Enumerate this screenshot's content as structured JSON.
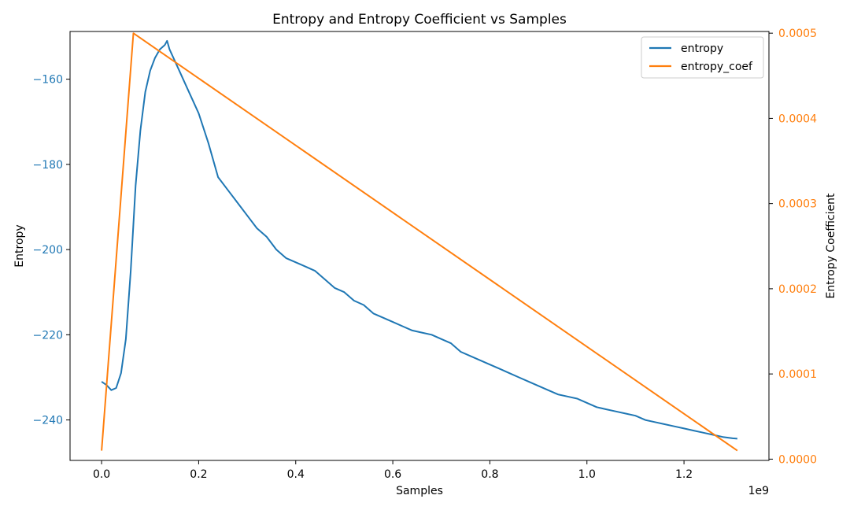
{
  "chart_data": {
    "type": "line",
    "title": "Entropy and Entropy Coefficient vs Samples",
    "xlabel": "Samples",
    "x_offset_label": "1e9",
    "ylabel_left": "Entropy",
    "ylabel_right": "Entropy Coefficient",
    "xlim": [
      -0.065,
      1.375
    ],
    "ylim_left": [
      -249.5,
      -148.8
    ],
    "ylim_right": [
      -1.5e-06,
      0.000502
    ],
    "x_ticks": [
      0.0,
      0.2,
      0.4,
      0.6,
      0.8,
      1.0,
      1.2
    ],
    "x_tick_labels": [
      "0.0",
      "0.2",
      "0.4",
      "0.6",
      "0.8",
      "1.0",
      "1.2"
    ],
    "y_left_ticks": [
      -160,
      -180,
      -200,
      -220,
      -240
    ],
    "y_left_tick_labels": [
      "−160",
      "−180",
      "−200",
      "−220",
      "−240"
    ],
    "y_right_ticks": [
      0.0,
      0.0001,
      0.0002,
      0.0003,
      0.0004,
      0.0005
    ],
    "y_right_tick_labels": [
      "0.0000",
      "0.0001",
      "0.0002",
      "0.0003",
      "0.0004",
      "0.0005"
    ],
    "legend_position": "top-right",
    "grid": false,
    "colors": {
      "entropy": "#1f77b4",
      "entropy_coef": "#ff7f0e"
    },
    "series": [
      {
        "name": "entropy",
        "axis": "left",
        "x": [
          0.0,
          0.01,
          0.02,
          0.03,
          0.04,
          0.05,
          0.06,
          0.07,
          0.08,
          0.09,
          0.1,
          0.11,
          0.12,
          0.13,
          0.135,
          0.14,
          0.16,
          0.18,
          0.2,
          0.22,
          0.24,
          0.26,
          0.28,
          0.3,
          0.32,
          0.34,
          0.36,
          0.38,
          0.4,
          0.42,
          0.44,
          0.46,
          0.48,
          0.5,
          0.52,
          0.54,
          0.56,
          0.58,
          0.6,
          0.62,
          0.64,
          0.66,
          0.68,
          0.7,
          0.72,
          0.74,
          0.76,
          0.78,
          0.8,
          0.82,
          0.84,
          0.86,
          0.88,
          0.9,
          0.92,
          0.94,
          0.96,
          0.98,
          1.0,
          1.02,
          1.04,
          1.06,
          1.08,
          1.1,
          1.12,
          1.14,
          1.16,
          1.18,
          1.2,
          1.22,
          1.24,
          1.26,
          1.28,
          1.3,
          1.31
        ],
        "values": [
          -231,
          -231.8,
          -233,
          -232.5,
          -229,
          -221,
          -205,
          -185,
          -172,
          -163,
          -158,
          -155,
          -153,
          -152,
          -151,
          -153,
          -158,
          -163,
          -168,
          -175,
          -183,
          -186,
          -189,
          -192,
          -195,
          -197,
          -200,
          -202,
          -203,
          -204,
          -205,
          -207,
          -209,
          -210,
          -212,
          -213,
          -215,
          -216,
          -217,
          -218,
          -219,
          -219.5,
          -220,
          -221,
          -222,
          -224,
          -225,
          -226,
          -227,
          -228,
          -229,
          -230,
          -231,
          -232,
          -233,
          -234,
          -234.5,
          -235,
          -236,
          -237,
          -237.5,
          -238,
          -238.5,
          -239,
          -240,
          -240.5,
          -241,
          -241.5,
          -242,
          -242.5,
          -243,
          -243.5,
          -244,
          -244.3,
          -244.4
        ]
      },
      {
        "name": "entropy_coef",
        "axis": "right",
        "x": [
          0.0,
          0.0655,
          1.31
        ],
        "values": [
          1e-05,
          0.0005,
          1e-05
        ]
      }
    ]
  }
}
